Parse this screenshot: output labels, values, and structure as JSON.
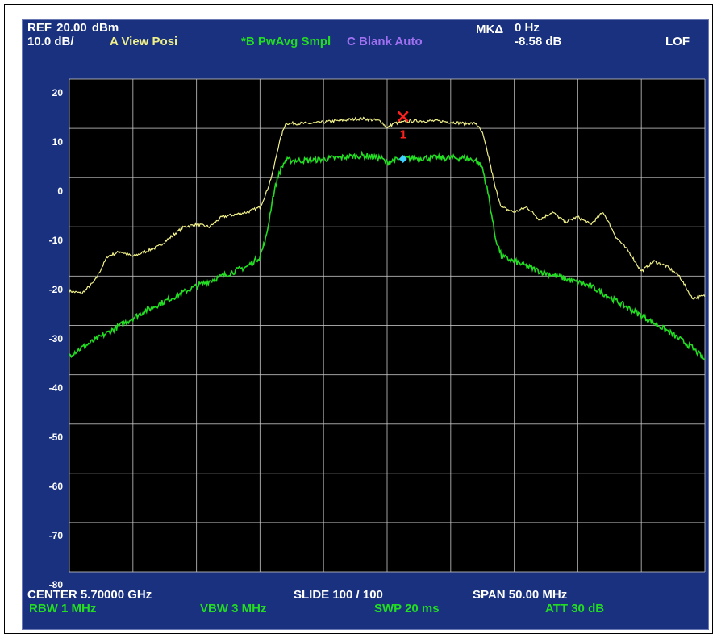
{
  "window": {
    "corner_mark": "*"
  },
  "header": {
    "ref": "REF  20.00 dBm",
    "scale": "10.0 dB/",
    "trace_a": "A View Posi",
    "trace_b": "*B PwAvg Smpl",
    "trace_c": "C Blank Auto",
    "marker_label": "MKΔ",
    "marker_freq": "0 Hz",
    "marker_level": "-8.58 dB",
    "mode": "LOF"
  },
  "footer": {
    "center": "CENTER 5.70000 GHz",
    "slide": "SLIDE 100 / 100",
    "span": "SPAN  50.00 MHz",
    "rbw": "RBW  1 MHz",
    "vbw": "VBW  3 MHz",
    "swp": "SWP  20 ms",
    "att": "ATT  30 dB"
  },
  "colors": {
    "background": "#000000",
    "panel": "#19317f",
    "grid": "#c8c8c8",
    "trace_a": "#f0f08a",
    "trace_b": "#22dd22",
    "trace_c": "#a070f0",
    "marker_delta": "#ff2020",
    "marker_ref": "#3fd0ff",
    "text": "#ffffff"
  },
  "chart_data": {
    "type": "line",
    "title": "",
    "xlabel": "",
    "ylabel": "",
    "xlim": [
      5.675,
      5.725
    ],
    "ylim": [
      -80,
      20
    ],
    "x_unit": "GHz",
    "y_unit": "dBm",
    "grid": true,
    "ytick_labels": [
      "20",
      "10",
      "0",
      "-10",
      "-20",
      "-30",
      "-40",
      "-50",
      "-60",
      "-70",
      "-80"
    ],
    "series": [
      {
        "name": "A",
        "color": "#f0f08a",
        "x": [
          5.675,
          5.676,
          5.677,
          5.678,
          5.679,
          5.68,
          5.681,
          5.682,
          5.683,
          5.684,
          5.685,
          5.686,
          5.687,
          5.688,
          5.689,
          5.69,
          5.6905,
          5.691,
          5.6915,
          5.692,
          5.694,
          5.696,
          5.698,
          5.6995,
          5.7,
          5.7005,
          5.702,
          5.704,
          5.706,
          5.707,
          5.7075,
          5.708,
          5.7085,
          5.709,
          5.71,
          5.711,
          5.712,
          5.713,
          5.714,
          5.715,
          5.716,
          5.717,
          5.718,
          5.719,
          5.72,
          5.721,
          5.722,
          5.723,
          5.724,
          5.725
        ],
        "y": [
          -23,
          -23.5,
          -21,
          -16,
          -15,
          -16,
          -15,
          -14,
          -12,
          -10,
          -9.5,
          -10,
          -8,
          -7.5,
          -7,
          -6,
          -3,
          1,
          7,
          11,
          11,
          11.5,
          12,
          11.5,
          10,
          11,
          11.5,
          11.5,
          11,
          11,
          9,
          4,
          -2,
          -6,
          -7,
          -6,
          -8.5,
          -7,
          -9,
          -8,
          -9.5,
          -7,
          -12,
          -15,
          -19,
          -17,
          -18,
          -20,
          -24.5,
          -24
        ]
      },
      {
        "name": "B",
        "color": "#22dd22",
        "x": [
          5.675,
          5.677,
          5.679,
          5.681,
          5.683,
          5.685,
          5.687,
          5.689,
          5.6895,
          5.69,
          5.6905,
          5.691,
          5.6915,
          5.692,
          5.694,
          5.696,
          5.698,
          5.6995,
          5.7,
          5.7005,
          5.702,
          5.704,
          5.706,
          5.707,
          5.7075,
          5.708,
          5.7085,
          5.709,
          5.71,
          5.712,
          5.714,
          5.716,
          5.718,
          5.72,
          5.722,
          5.724,
          5.725
        ],
        "y": [
          -36,
          -33,
          -30,
          -27,
          -24.5,
          -22,
          -20,
          -18,
          -17,
          -16,
          -12,
          -4,
          1,
          3.5,
          3.5,
          4,
          4.5,
          4,
          3,
          3.5,
          4,
          4,
          4,
          3.5,
          2,
          -4,
          -12,
          -16,
          -17,
          -19,
          -20.5,
          -22,
          -25,
          -28,
          -31,
          -34.5,
          -37
        ]
      }
    ],
    "markers": [
      {
        "label": "1",
        "x": 5.70125,
        "y": 12.4,
        "symbol": "x",
        "color": "#ff2020"
      },
      {
        "label": "",
        "x": 5.70125,
        "y": 3.8,
        "symbol": "diamond",
        "color": "#3fd0ff"
      }
    ]
  }
}
